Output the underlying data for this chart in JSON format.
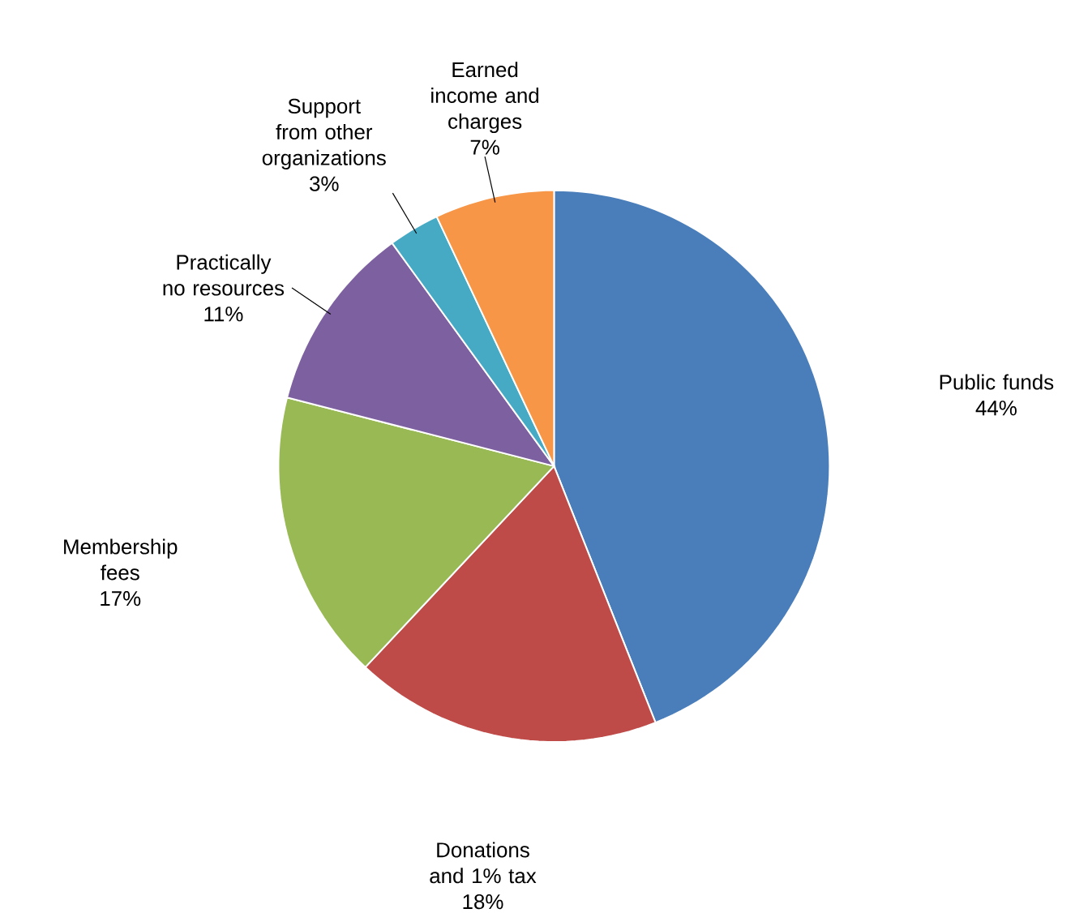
{
  "chart_data": {
    "type": "pie",
    "categories": [
      "Public funds",
      "Donations and 1% tax",
      "Membership fees",
      "Practically no resources",
      "Support from other organizations",
      "Earned income and charges"
    ],
    "values": [
      44,
      18,
      17,
      11,
      3,
      7
    ],
    "value_labels": [
      "44%",
      "18%",
      "17%",
      "11%",
      "3%",
      "7%"
    ],
    "colors": [
      "#4a7ebb",
      "#be4b48",
      "#98b954",
      "#7d60a0",
      "#46aac4",
      "#f79646"
    ]
  }
}
